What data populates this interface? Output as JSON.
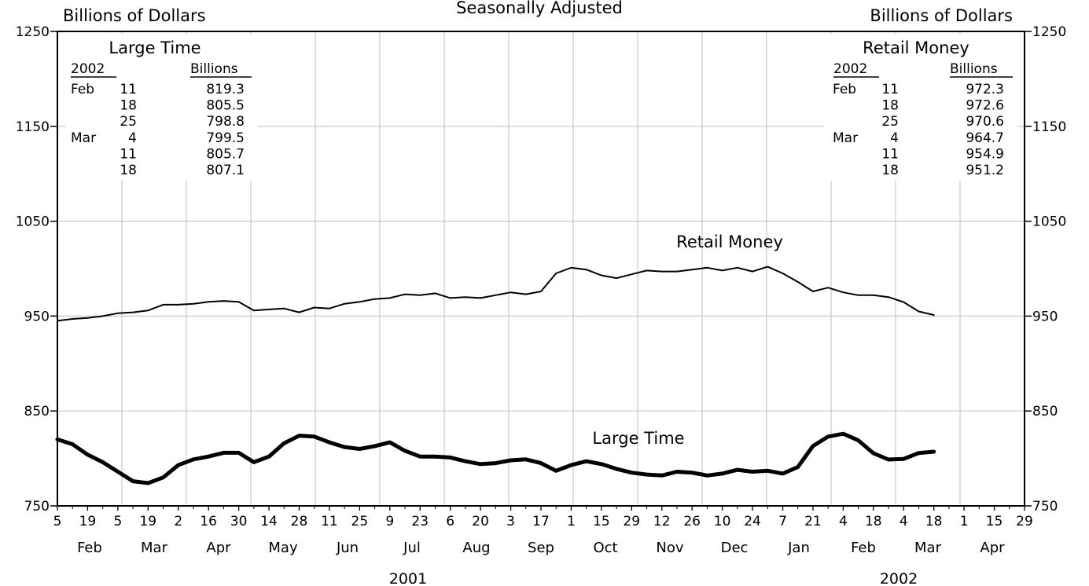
{
  "chart_data": {
    "type": "line",
    "subtitle": "Seasonally Adjusted",
    "ylabel_left": "Billions of Dollars",
    "ylabel_right": "Billions of Dollars",
    "ylim": [
      750,
      1250
    ],
    "yticks": [
      "750",
      "850",
      "950",
      "1050",
      "1150",
      "1250"
    ],
    "grid": true,
    "x_tick_labels": [
      "5",
      "19",
      "5",
      "19",
      "2",
      "16",
      "30",
      "14",
      "28",
      "11",
      "25",
      "9",
      "23",
      "6",
      "20",
      "3",
      "17",
      "1",
      "15",
      "29",
      "12",
      "26",
      "10",
      "24",
      "7",
      "21",
      "4",
      "18",
      "4",
      "18",
      "1",
      "15",
      "29"
    ],
    "months": [
      "Feb",
      "Mar",
      "Apr",
      "May",
      "Jun",
      "Jul",
      "Aug",
      "Sep",
      "Oct",
      "Nov",
      "Dec",
      "Jan",
      "Feb",
      "Mar",
      "Apr"
    ],
    "years": [
      "2001",
      "2002"
    ],
    "x_dates": [
      "2001-02-05",
      "2001-02-12",
      "2001-02-19",
      "2001-02-26",
      "2001-03-05",
      "2001-03-12",
      "2001-03-19",
      "2001-03-26",
      "2001-04-02",
      "2001-04-09",
      "2001-04-16",
      "2001-04-23",
      "2001-04-30",
      "2001-05-07",
      "2001-05-14",
      "2001-05-21",
      "2001-05-28",
      "2001-06-04",
      "2001-06-11",
      "2001-06-18",
      "2001-06-25",
      "2001-07-02",
      "2001-07-09",
      "2001-07-16",
      "2001-07-23",
      "2001-07-30",
      "2001-08-06",
      "2001-08-13",
      "2001-08-20",
      "2001-08-27",
      "2001-09-03",
      "2001-09-10",
      "2001-09-17",
      "2001-09-24",
      "2001-10-01",
      "2001-10-08",
      "2001-10-15",
      "2001-10-22",
      "2001-10-29",
      "2001-11-05",
      "2001-11-12",
      "2001-11-19",
      "2001-11-26",
      "2001-12-03",
      "2001-12-10",
      "2001-12-17",
      "2001-12-24",
      "2001-12-31",
      "2002-01-07",
      "2002-01-14",
      "2002-01-21",
      "2002-01-28",
      "2002-02-04",
      "2002-02-11",
      "2002-02-18",
      "2002-02-25",
      "2002-03-04",
      "2002-03-11",
      "2002-03-18"
    ],
    "series": [
      {
        "name": "Retail Money",
        "line_width": "thin",
        "values": [
          945,
          947,
          948,
          950,
          953,
          954,
          956,
          962,
          962,
          963,
          965,
          966,
          965,
          956,
          957,
          958,
          954,
          959,
          958,
          963,
          965,
          968,
          969,
          973,
          972,
          974,
          969,
          970,
          969,
          972,
          975,
          973,
          976,
          995,
          1001,
          999,
          993,
          990,
          994,
          998,
          997,
          997,
          999,
          1001,
          998,
          1001,
          997,
          1002,
          995,
          986,
          976,
          980,
          975,
          972,
          972,
          970,
          964.7,
          954.9,
          951.2
        ]
      },
      {
        "name": "Large Time",
        "line_width": "thick",
        "values": [
          820,
          815,
          804,
          796,
          786,
          776,
          774,
          780,
          793,
          799,
          802,
          806,
          806,
          796,
          802,
          816,
          824,
          823,
          817,
          812,
          810,
          813,
          817,
          808,
          802,
          802,
          801,
          797,
          794,
          795,
          798,
          799,
          795,
          787,
          793,
          797,
          794,
          789,
          785,
          783,
          782,
          786,
          785,
          782,
          784,
          788,
          786,
          787,
          784,
          791,
          813,
          823,
          826,
          819,
          805.5,
          798.8,
          799.5,
          805.7,
          807.1
        ]
      }
    ]
  },
  "insets": {
    "large_time": {
      "title": "Large Time",
      "year_header": "2002",
      "value_header": "Billions",
      "rows": [
        {
          "month": "Feb",
          "day": "11",
          "value": "819.3"
        },
        {
          "month": "",
          "day": "18",
          "value": "805.5"
        },
        {
          "month": "",
          "day": "25",
          "value": "798.8"
        },
        {
          "month": "Mar",
          "day": "4",
          "value": "799.5"
        },
        {
          "month": "",
          "day": "11",
          "value": "805.7"
        },
        {
          "month": "",
          "day": "18",
          "value": "807.1"
        }
      ]
    },
    "retail_money": {
      "title": "Retail Money",
      "year_header": "2002",
      "value_header": "Billions",
      "rows": [
        {
          "month": "Feb",
          "day": "11",
          "value": "972.3"
        },
        {
          "month": "",
          "day": "18",
          "value": "972.6"
        },
        {
          "month": "",
          "day": "25",
          "value": "970.6"
        },
        {
          "month": "Mar",
          "day": "4",
          "value": "964.7"
        },
        {
          "month": "",
          "day": "11",
          "value": "954.9"
        },
        {
          "month": "",
          "day": "18",
          "value": "951.2"
        }
      ]
    }
  },
  "series_labels": {
    "retail_money": "Retail Money",
    "large_time": "Large Time"
  }
}
